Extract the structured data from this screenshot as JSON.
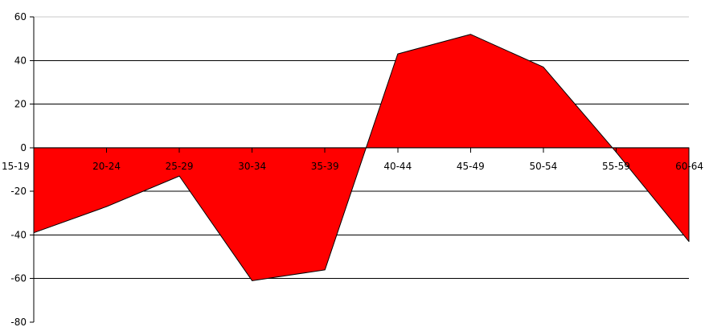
{
  "chart_data": {
    "type": "area",
    "categories": [
      "15-19",
      "20-24",
      "25-29",
      "30-34",
      "35-39",
      "40-44",
      "45-49",
      "50-54",
      "55-59",
      "60-64"
    ],
    "series": [
      {
        "values": [
          -39,
          -27,
          -13,
          -61,
          -56,
          43,
          52,
          37,
          -2,
          -43
        ]
      }
    ],
    "title": "",
    "xlabel": "",
    "ylabel": "",
    "ylim": [
      -80,
      60
    ],
    "yticks": [
      -80,
      -60,
      -40,
      -20,
      0,
      20,
      40,
      60
    ],
    "grid": true,
    "legend": "none",
    "colors": {
      "fill": "#ff0000",
      "outline": "#000000",
      "grid": "#000000",
      "top_grid": "#c8c8c8"
    }
  }
}
